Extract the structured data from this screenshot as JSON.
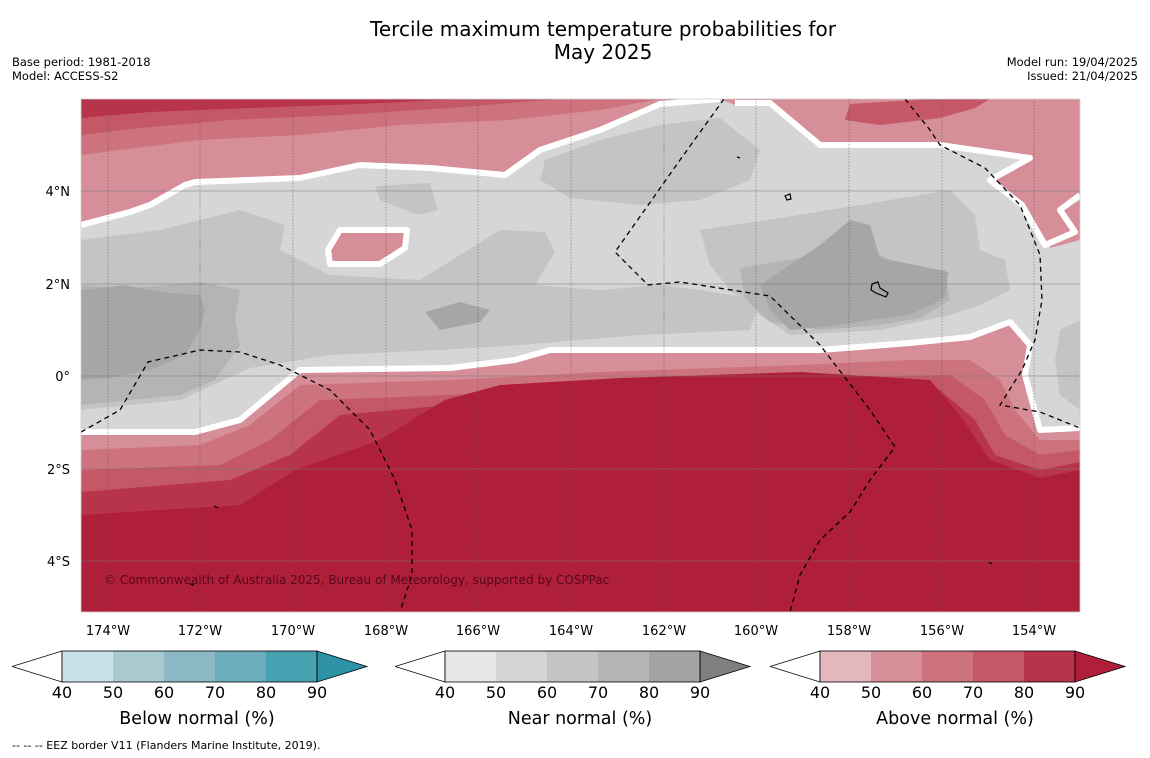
{
  "title": {
    "line1": "Tercile maximum temperature probabilities for",
    "line2": "May 2025"
  },
  "meta_left": {
    "base_period": "Base period: 1981-2018",
    "model": "Model: ACCESS-S2"
  },
  "meta_right": {
    "model_run": "Model run: 19/04/2025",
    "issued": "Issued: 21/04/2025"
  },
  "map": {
    "copyright": "© Commonwealth of Australia 2025, Bureau of Meteorology, supported by COSPPac",
    "lon_ticks": [
      "174°W",
      "172°W",
      "170°W",
      "168°W",
      "166°W",
      "164°W",
      "162°W",
      "160°W",
      "158°W",
      "156°W",
      "154°W"
    ],
    "lat_ticks": [
      "4°N",
      "2°N",
      "0°",
      "2°S",
      "4°S"
    ],
    "lon_range": [
      "174.6°W",
      "153°W"
    ],
    "lat_range": [
      "5.1°S",
      "6°N"
    ]
  },
  "colorbars": [
    {
      "label": "Below normal (%)",
      "ticks": [
        "40",
        "50",
        "60",
        "70",
        "80",
        "90"
      ],
      "colors": [
        "#ffffff",
        "#c9e1e8",
        "#a8c9ce",
        "#8ab8c4",
        "#6cadbc",
        "#48a1b0",
        "#2e93a6"
      ]
    },
    {
      "label": "Near normal (%)",
      "ticks": [
        "40",
        "50",
        "60",
        "70",
        "80",
        "90"
      ],
      "colors": [
        "#ffffff",
        "#e6e6e6",
        "#d4d4d4",
        "#c4c4c4",
        "#b4b4b4",
        "#a4a4a4",
        "#7f7f7f"
      ]
    },
    {
      "label": "Above normal (%)",
      "ticks": [
        "40",
        "50",
        "60",
        "70",
        "80",
        "90"
      ],
      "colors": [
        "#ffffff",
        "#e2b8bd",
        "#d68f98",
        "#cd737e",
        "#c45867",
        "#b8344a",
        "#b01f3a"
      ]
    }
  ],
  "footnote": "--  --  -- EEZ border V11 (Flanders Marine Institute, 2019)."
}
